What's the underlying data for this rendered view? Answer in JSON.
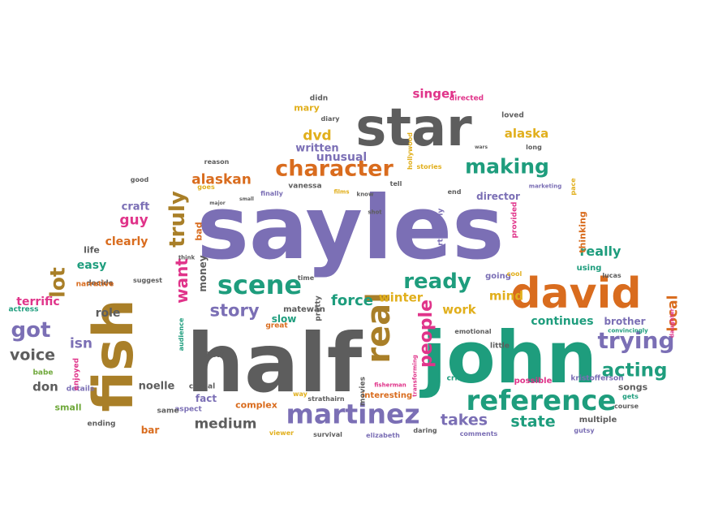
{
  "palette": {
    "purple": "#7B6FB5",
    "gray": "#5D5D5D",
    "brown": "#A97F28",
    "teal": "#1E9D7D",
    "orange": "#D96C1E",
    "pink": "#E0348A",
    "gold": "#E1AF1C",
    "green": "#6FA83A"
  },
  "words": [
    {
      "text": "sayles",
      "color": "purple"
    },
    {
      "text": "half",
      "color": "gray"
    },
    {
      "text": "john",
      "color": "teal"
    },
    {
      "text": "fish",
      "color": "brown"
    },
    {
      "text": "star",
      "color": "gray"
    },
    {
      "text": "david",
      "color": "orange"
    },
    {
      "text": "reference",
      "color": "teal"
    },
    {
      "text": "martinez",
      "color": "purple"
    },
    {
      "text": "real",
      "color": "brown"
    },
    {
      "text": "trying",
      "color": "purple"
    },
    {
      "text": "scene",
      "color": "teal"
    },
    {
      "text": "character",
      "color": "orange"
    },
    {
      "text": "making",
      "color": "teal"
    },
    {
      "text": "truly",
      "color": "brown"
    },
    {
      "text": "ready",
      "color": "teal"
    },
    {
      "text": "people",
      "color": "pink"
    },
    {
      "text": "story",
      "color": "purple"
    },
    {
      "text": "got",
      "color": "purple"
    },
    {
      "text": "acting",
      "color": "teal"
    },
    {
      "text": "takes",
      "color": "purple"
    },
    {
      "text": "state",
      "color": "teal"
    },
    {
      "text": "medium",
      "color": "gray"
    },
    {
      "text": "force",
      "color": "teal"
    },
    {
      "text": "voice",
      "color": "gray"
    },
    {
      "text": "lot",
      "color": "brown"
    },
    {
      "text": "want",
      "color": "pink"
    },
    {
      "text": "alaskan",
      "color": "orange"
    },
    {
      "text": "dvd",
      "color": "gold"
    },
    {
      "text": "alaska",
      "color": "gold"
    },
    {
      "text": "really",
      "color": "teal"
    },
    {
      "text": "winter",
      "color": "gold"
    },
    {
      "text": "work",
      "color": "gold"
    },
    {
      "text": "mind",
      "color": "gold"
    },
    {
      "text": "isn",
      "color": "purple"
    },
    {
      "text": "guy",
      "color": "pink"
    },
    {
      "text": "local",
      "color": "orange"
    },
    {
      "text": "continues",
      "color": "teal"
    },
    {
      "text": "singer",
      "color": "pink"
    },
    {
      "text": "unusual",
      "color": "purple"
    },
    {
      "text": "written",
      "color": "purple"
    },
    {
      "text": "terrific",
      "color": "pink"
    },
    {
      "text": "easy",
      "color": "teal"
    },
    {
      "text": "clearly",
      "color": "orange"
    },
    {
      "text": "role",
      "color": "gray"
    },
    {
      "text": "don",
      "color": "gray"
    },
    {
      "text": "noelle",
      "color": "gray"
    },
    {
      "text": "fact",
      "color": "purple"
    },
    {
      "text": "complex",
      "color": "orange"
    },
    {
      "text": "self",
      "color": "gray"
    },
    {
      "text": "slow",
      "color": "teal"
    },
    {
      "text": "brother",
      "color": "purple"
    },
    {
      "text": "songs",
      "color": "gray"
    },
    {
      "text": "craft",
      "color": "purple"
    },
    {
      "text": "director",
      "color": "purple"
    },
    {
      "text": "bar",
      "color": "orange"
    },
    {
      "text": "mary",
      "color": "gold"
    },
    {
      "text": "bad",
      "color": "orange"
    },
    {
      "text": "money",
      "color": "gray"
    },
    {
      "text": "small",
      "color": "green"
    },
    {
      "text": "multiple",
      "color": "gray"
    },
    {
      "text": "interesting",
      "color": "orange"
    },
    {
      "text": "possible",
      "color": "pink"
    },
    {
      "text": "thinking",
      "color": "orange"
    },
    {
      "text": "directed",
      "color": "pink"
    },
    {
      "text": "going",
      "color": "purple"
    },
    {
      "text": "using",
      "color": "teal"
    },
    {
      "text": "loved",
      "color": "gray"
    },
    {
      "text": "emotional",
      "color": "gray"
    },
    {
      "text": "little",
      "color": "gray"
    },
    {
      "text": "kristofferson",
      "color": "purple"
    },
    {
      "text": "matewan",
      "color": "gray"
    },
    {
      "text": "pretty",
      "color": "gray"
    },
    {
      "text": "great",
      "color": "orange"
    },
    {
      "text": "audience",
      "color": "teal"
    },
    {
      "text": "aspect",
      "color": "purple"
    },
    {
      "text": "life",
      "color": "gray"
    },
    {
      "text": "decide",
      "color": "gray"
    },
    {
      "text": "narrative",
      "color": "orange"
    },
    {
      "text": "suggest",
      "color": "gray"
    },
    {
      "text": "actress",
      "color": "teal"
    },
    {
      "text": "casual",
      "color": "gray"
    },
    {
      "text": "details",
      "color": "purple"
    },
    {
      "text": "babe",
      "color": "green"
    },
    {
      "text": "enjoyed",
      "color": "pink"
    },
    {
      "text": "ending",
      "color": "gray"
    },
    {
      "text": "same",
      "color": "gray"
    },
    {
      "text": "viewer",
      "color": "gold"
    },
    {
      "text": "survival",
      "color": "gray"
    },
    {
      "text": "elizabeth",
      "color": "purple"
    },
    {
      "text": "daring",
      "color": "gray"
    },
    {
      "text": "comments",
      "color": "purple"
    },
    {
      "text": "gutsy",
      "color": "purple"
    },
    {
      "text": "course",
      "color": "gray"
    },
    {
      "text": "gets",
      "color": "teal"
    },
    {
      "text": "daughter",
      "color": "pink"
    },
    {
      "text": "convincingly",
      "color": "teal"
    },
    {
      "text": "lucas",
      "color": "gray"
    },
    {
      "text": "cool",
      "color": "gold"
    },
    {
      "text": "way",
      "color": "gold"
    },
    {
      "text": "strathairn",
      "color": "gray"
    },
    {
      "text": "movies",
      "color": "gray"
    },
    {
      "text": "fisherman",
      "color": "pink"
    },
    {
      "text": "transforming",
      "color": "pink"
    },
    {
      "text": "crisis",
      "color": "teal"
    },
    {
      "text": "diary",
      "color": "gray"
    },
    {
      "text": "didn",
      "color": "gray"
    },
    {
      "text": "vanessa",
      "color": "gray"
    },
    {
      "text": "finally",
      "color": "purple"
    },
    {
      "text": "films",
      "color": "gold"
    },
    {
      "text": "tell",
      "color": "gray"
    },
    {
      "text": "stories",
      "color": "gold"
    },
    {
      "text": "hollywood",
      "color": "gold"
    },
    {
      "text": "reason",
      "color": "gray"
    },
    {
      "text": "good",
      "color": "gray"
    },
    {
      "text": "goes",
      "color": "gold"
    },
    {
      "text": "major",
      "color": "gray"
    },
    {
      "text": "small",
      "color": "gray"
    },
    {
      "text": "know",
      "color": "gray"
    },
    {
      "text": "shot",
      "color": "gray"
    },
    {
      "text": "end",
      "color": "gray"
    },
    {
      "text": "particularly",
      "color": "purple"
    },
    {
      "text": "provided",
      "color": "pink"
    },
    {
      "text": "wars",
      "color": "gray"
    },
    {
      "text": "long",
      "color": "gray"
    },
    {
      "text": "marketing",
      "color": "purple"
    },
    {
      "text": "pace",
      "color": "gold"
    },
    {
      "text": "time",
      "color": "gray"
    },
    {
      "text": "think",
      "color": "gray"
    }
  ]
}
